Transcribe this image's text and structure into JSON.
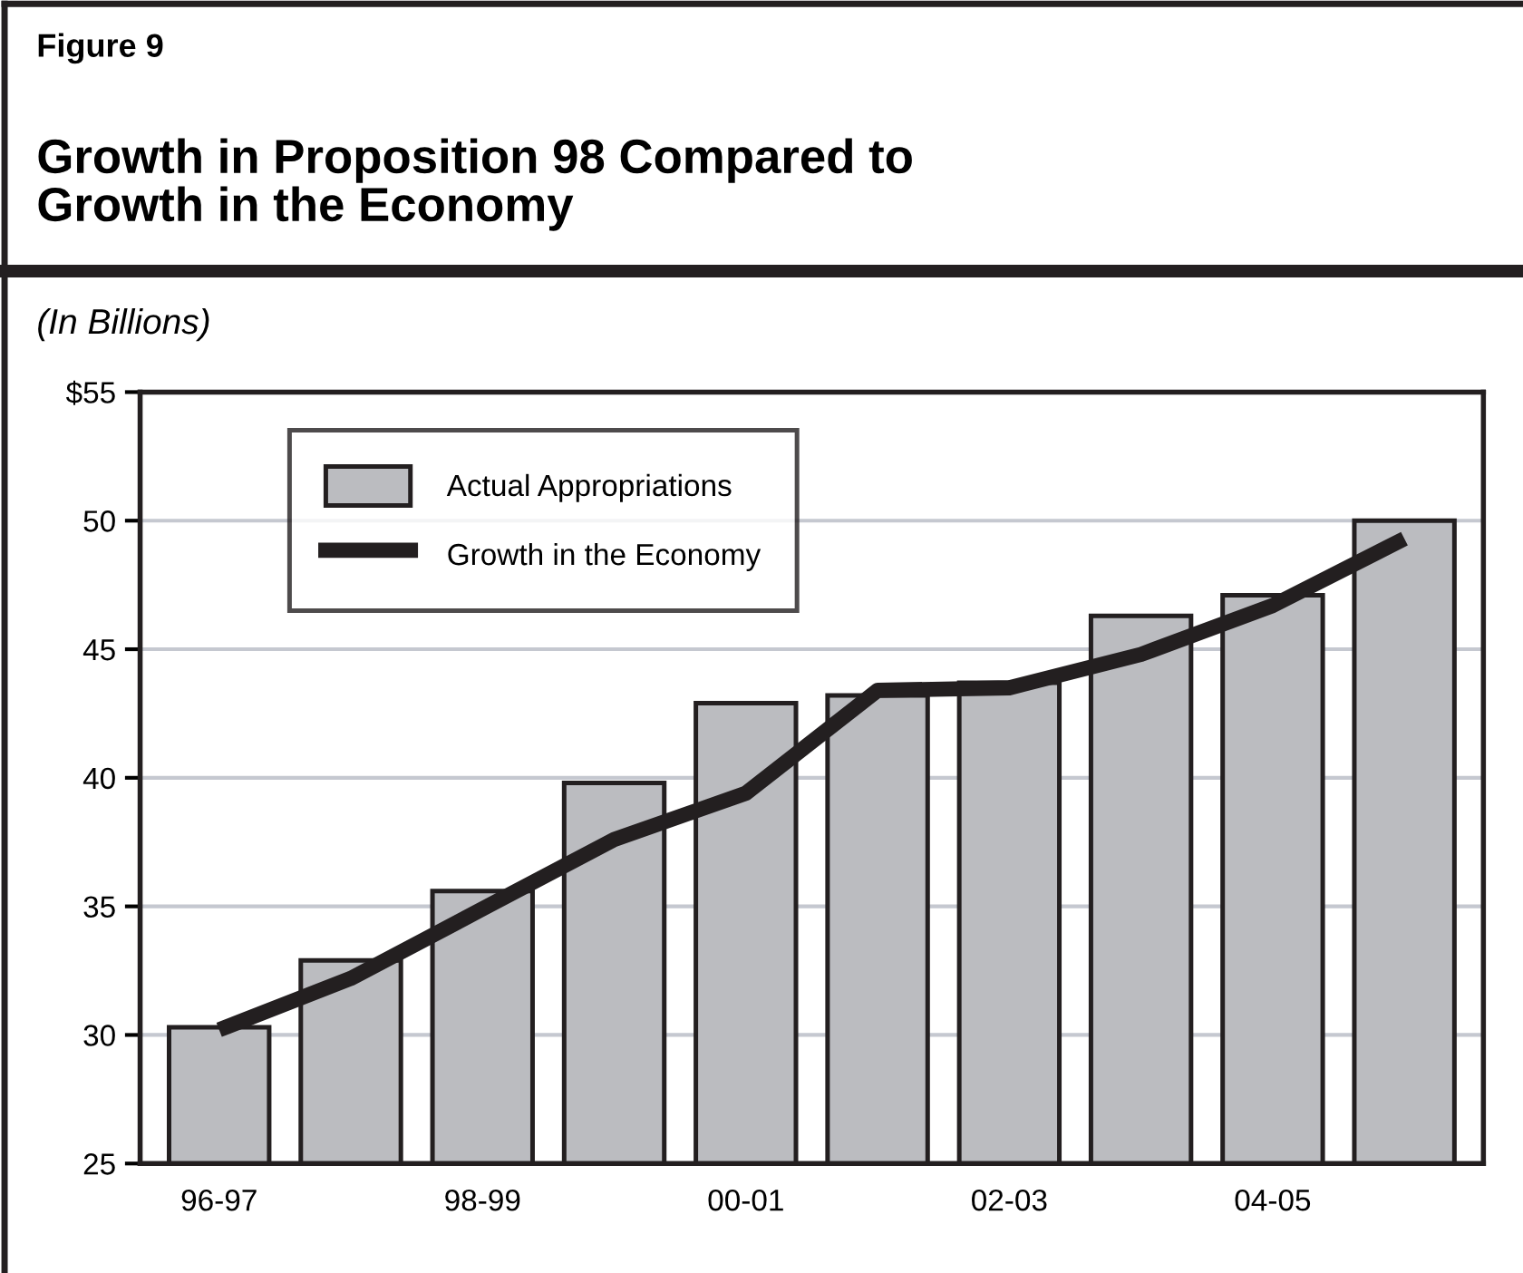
{
  "chart_data": {
    "type": "bar",
    "title": "Growth in Proposition 98 Compared to\nGrowth in the Economy",
    "subtitle": "(In Billions)",
    "annotations": [
      "Figure 9"
    ],
    "categories": [
      "96-97",
      null,
      "98-99",
      null,
      "00-01",
      null,
      "02-03",
      null,
      "04-05",
      null
    ],
    "series": [
      {
        "name": "Actual Appropriations",
        "color": "#bbbcc0",
        "values": [
          30.3,
          32.9,
          35.6,
          39.8,
          42.9,
          43.2,
          43.7,
          46.3,
          47.1,
          50.0
        ]
      },
      {
        "name": "Growth in the Economy",
        "type": "line",
        "color": "#231f20",
        "values": [
          30.2,
          32.2,
          34.9,
          37.6,
          39.4,
          43.4,
          43.5,
          44.8,
          46.7,
          49.3
        ]
      }
    ],
    "ylim": [
      25,
      55
    ],
    "yticks": [
      25,
      30,
      35,
      40,
      45,
      50,
      {
        "value": 55,
        "label": "$55"
      }
    ],
    "grid": "y",
    "legend": "top left",
    "marker": "none",
    "line_style": "solid"
  }
}
